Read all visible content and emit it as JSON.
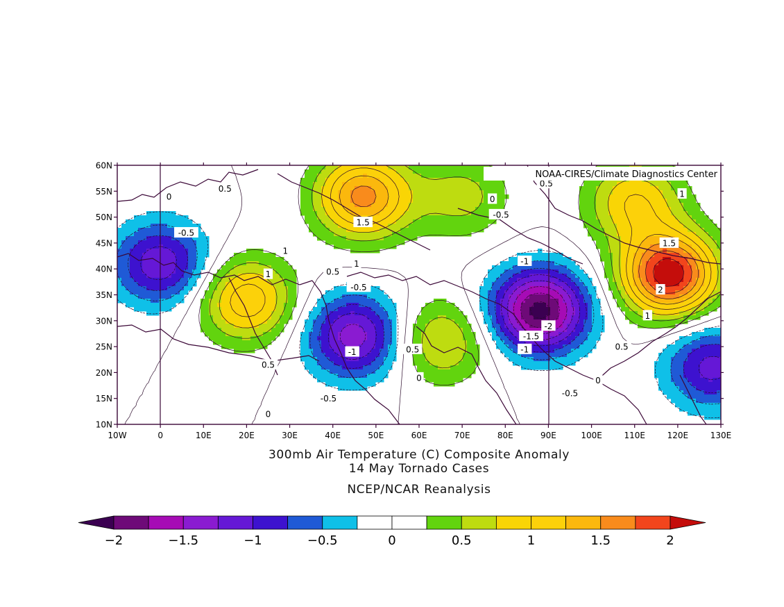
{
  "map": {
    "credit": "NOAA-CIRES/Climate Diagnostics Center",
    "lon_range": [
      -10,
      130
    ],
    "lat_range": [
      10,
      60
    ],
    "lon_ticks": [
      {
        "value": -10,
        "label": "10W"
      },
      {
        "value": 0,
        "label": "0"
      },
      {
        "value": 10,
        "label": "10E"
      },
      {
        "value": 20,
        "label": "20E"
      },
      {
        "value": 30,
        "label": "30E"
      },
      {
        "value": 40,
        "label": "40E"
      },
      {
        "value": 50,
        "label": "50E"
      },
      {
        "value": 60,
        "label": "60E"
      },
      {
        "value": 70,
        "label": "70E"
      },
      {
        "value": 80,
        "label": "80E"
      },
      {
        "value": 90,
        "label": "90E"
      },
      {
        "value": 100,
        "label": "100E"
      },
      {
        "value": 110,
        "label": "110E"
      },
      {
        "value": 120,
        "label": "120E"
      },
      {
        "value": 130,
        "label": "130E"
      }
    ],
    "lat_ticks": [
      {
        "value": 60,
        "label": "60N"
      },
      {
        "value": 55,
        "label": "55N"
      },
      {
        "value": 50,
        "label": "50N"
      },
      {
        "value": 45,
        "label": "45N"
      },
      {
        "value": 40,
        "label": "40N"
      },
      {
        "value": 35,
        "label": "35N"
      },
      {
        "value": 30,
        "label": "30N"
      },
      {
        "value": 25,
        "label": "25N"
      },
      {
        "value": 20,
        "label": "20N"
      },
      {
        "value": 15,
        "label": "15N"
      },
      {
        "value": 10,
        "label": "10N"
      }
    ],
    "reference_meridians": [
      0,
      90
    ],
    "anomaly_centers": [
      {
        "lon": 47,
        "lat": 54,
        "value": 1.6
      },
      {
        "lon": 20,
        "lat": 34,
        "value": 1.2
      },
      {
        "lon": 88,
        "lat": 32,
        "value": -2.1
      },
      {
        "lon": 45,
        "lat": 27,
        "value": -1.4
      },
      {
        "lon": 118,
        "lat": 39,
        "value": 2.2
      },
      {
        "lon": 0,
        "lat": 41,
        "value": -1.2
      },
      {
        "lon": 128,
        "lat": 21,
        "value": -1.1
      },
      {
        "lon": 110,
        "lat": 53,
        "value": 1.0
      },
      {
        "lon": 70,
        "lat": 54,
        "value": 0.6
      },
      {
        "lon": 65,
        "lat": 26,
        "value": 0.8
      }
    ],
    "contour_labels": [
      {
        "lon": 15,
        "lat": 55.5,
        "text": "0.5"
      },
      {
        "lon": 2,
        "lat": 54,
        "text": "0"
      },
      {
        "lon": 6,
        "lat": 47,
        "text": "-0.5"
      },
      {
        "lon": 29,
        "lat": 43.5,
        "text": "1"
      },
      {
        "lon": 25,
        "lat": 39,
        "text": "1"
      },
      {
        "lon": 47,
        "lat": 49,
        "text": "1.5"
      },
      {
        "lon": 40,
        "lat": 39.5,
        "text": "0.5"
      },
      {
        "lon": 45.5,
        "lat": 41,
        "text": "1"
      },
      {
        "lon": 46,
        "lat": 36.5,
        "text": "-0.5"
      },
      {
        "lon": 44.5,
        "lat": 24,
        "text": "-1"
      },
      {
        "lon": 25,
        "lat": 21.5,
        "text": "0.5"
      },
      {
        "lon": 39,
        "lat": 15,
        "text": "-0.5"
      },
      {
        "lon": 25,
        "lat": 12,
        "text": "0"
      },
      {
        "lon": 58.5,
        "lat": 24.5,
        "text": "0.5"
      },
      {
        "lon": 60,
        "lat": 19,
        "text": "0"
      },
      {
        "lon": 89.5,
        "lat": 56.5,
        "text": "0.5"
      },
      {
        "lon": 77,
        "lat": 53.5,
        "text": "0"
      },
      {
        "lon": 79,
        "lat": 50.5,
        "text": "-0.5"
      },
      {
        "lon": 84.5,
        "lat": 41.5,
        "text": "-1"
      },
      {
        "lon": 90,
        "lat": 29,
        "text": "-2"
      },
      {
        "lon": 86,
        "lat": 27,
        "text": "-1.5"
      },
      {
        "lon": 84.5,
        "lat": 24.5,
        "text": "-1"
      },
      {
        "lon": 95,
        "lat": 16,
        "text": "-0.5"
      },
      {
        "lon": 101.5,
        "lat": 18.5,
        "text": "0"
      },
      {
        "lon": 121,
        "lat": 54.5,
        "text": "1"
      },
      {
        "lon": 118,
        "lat": 45,
        "text": "1.5"
      },
      {
        "lon": 116,
        "lat": 36,
        "text": "2"
      },
      {
        "lon": 113,
        "lat": 31,
        "text": "1"
      },
      {
        "lon": 107,
        "lat": 25,
        "text": "0.5"
      }
    ]
  },
  "caption": {
    "line1": "300mb Air Temperature (C) Composite Anomaly",
    "line2": "14 May Tornado Cases",
    "line3": "NCEP/NCAR Reanalysis"
  },
  "colorbar": {
    "ticks": [
      {
        "value": -2,
        "label": "−2"
      },
      {
        "value": -1.5,
        "label": "−1.5"
      },
      {
        "value": -1,
        "label": "−1"
      },
      {
        "value": -0.5,
        "label": "−0.5"
      },
      {
        "value": 0,
        "label": "0"
      },
      {
        "value": 0.5,
        "label": "0.5"
      },
      {
        "value": 1,
        "label": "1"
      },
      {
        "value": 1.5,
        "label": "1.5"
      },
      {
        "value": 2,
        "label": "2"
      }
    ],
    "levels": [
      -2,
      -1.75,
      -1.5,
      -1.25,
      -1,
      -0.75,
      -0.5,
      -0.25,
      0,
      0.25,
      0.5,
      0.75,
      1,
      1.25,
      1.5,
      1.75,
      2
    ],
    "colors": [
      "#3b0051",
      "#6e0a78",
      "#a60bb5",
      "#8a1bd1",
      "#6518d6",
      "#3d12cf",
      "#1f5ad6",
      "#0fc0e8",
      "#ffffff",
      "#ffffff",
      "#62d40e",
      "#bedc10",
      "#f9d505",
      "#fcd10a",
      "#fbb80d",
      "#f98b1c",
      "#f2451c",
      "#c40d0b"
    ]
  }
}
